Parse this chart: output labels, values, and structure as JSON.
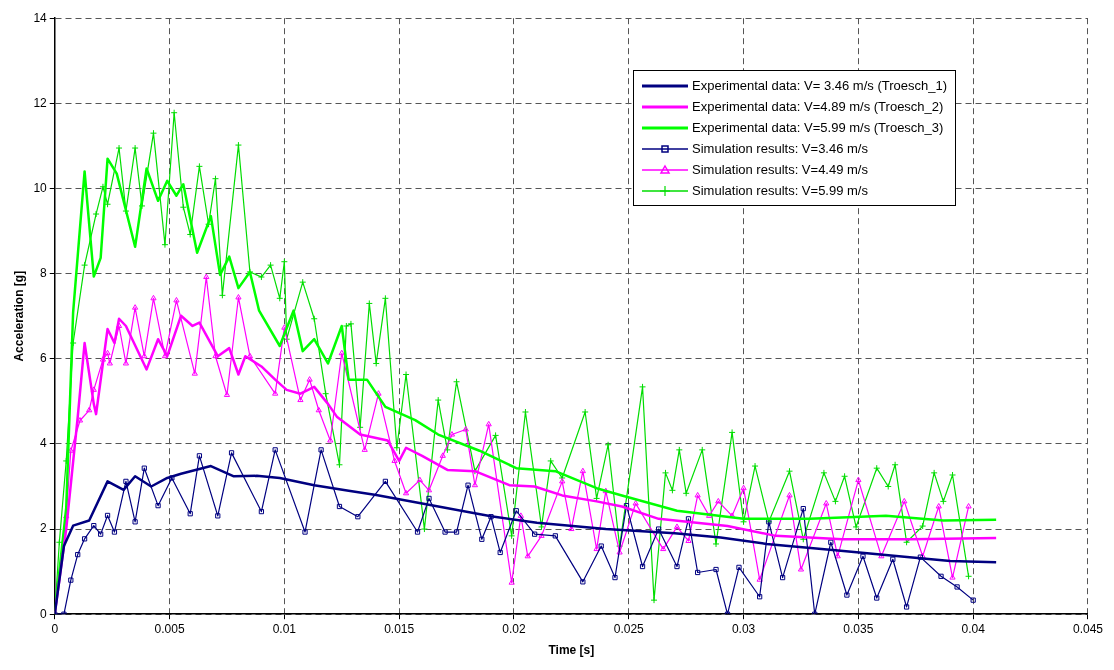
{
  "chart_data": {
    "type": "line",
    "xlabel": "Time [s]",
    "ylabel": "Acceleration [g]",
    "xlim": [
      0,
      0.045
    ],
    "ylim": [
      0,
      14
    ],
    "xticks": [
      0,
      0.005,
      0.01,
      0.015,
      0.02,
      0.025,
      0.03,
      0.035,
      0.04,
      0.045
    ],
    "yticks": [
      0,
      2,
      4,
      6,
      8,
      10,
      12,
      14
    ],
    "grid": true,
    "legend": "top right",
    "series": [
      {
        "name": "Experimental data: V= 3.46 m/s (Troesch_1)",
        "color": "#000080",
        "marker": "none",
        "x": [
          0,
          0.0004,
          0.0008,
          0.0015,
          0.0023,
          0.003,
          0.0035,
          0.0042,
          0.0049,
          0.0055,
          0.0068,
          0.0078,
          0.0088,
          0.0098,
          0.0113,
          0.0128,
          0.014,
          0.015,
          0.017,
          0.019,
          0.021,
          0.024,
          0.027,
          0.029,
          0.031,
          0.034,
          0.037,
          0.039,
          0.041
        ],
        "values": [
          0,
          1.6,
          2.08,
          2.2,
          3.12,
          2.92,
          3.24,
          3.0,
          3.2,
          3.3,
          3.48,
          3.24,
          3.25,
          3.2,
          3.03,
          2.9,
          2.8,
          2.7,
          2.5,
          2.3,
          2.15,
          2.0,
          1.9,
          1.8,
          1.65,
          1.5,
          1.35,
          1.25,
          1.22
        ]
      },
      {
        "name": "Experimental data: V=4.89 m/s (Troesch_2)",
        "color": "#ff00ff",
        "marker": "none",
        "x": [
          0,
          0.0005,
          0.001,
          0.0013,
          0.0017,
          0.0018,
          0.0023,
          0.0026,
          0.0028,
          0.0031,
          0.004,
          0.0045,
          0.0049,
          0.0055,
          0.006,
          0.0063,
          0.0071,
          0.0076,
          0.008,
          0.0083,
          0.009,
          0.0096,
          0.0101,
          0.0107,
          0.0113,
          0.0119,
          0.0123,
          0.0133,
          0.0145,
          0.015,
          0.0153,
          0.016,
          0.0171,
          0.0183,
          0.0198,
          0.0209,
          0.0221,
          0.0236,
          0.0247,
          0.0263,
          0.0293,
          0.0314,
          0.0343,
          0.0373,
          0.041
        ],
        "values": [
          0,
          2.0,
          4.63,
          6.37,
          4.94,
          4.7,
          6.7,
          6.37,
          6.94,
          6.77,
          5.75,
          6.46,
          6.06,
          7.01,
          6.77,
          6.85,
          6.06,
          6.25,
          5.63,
          6.06,
          5.82,
          5.51,
          5.27,
          5.18,
          5.34,
          4.94,
          4.63,
          4.22,
          4.08,
          3.6,
          3.91,
          3.72,
          3.39,
          3.36,
          3.03,
          3.0,
          2.79,
          2.65,
          2.53,
          2.24,
          2.07,
          1.84,
          1.76,
          1.76,
          1.79
        ]
      },
      {
        "name": "Experimental data: V=5.99 m/s (Troesch_3)",
        "color": "#00ff00",
        "marker": "none",
        "x": [
          0,
          0.0005,
          0.0008,
          0.0013,
          0.0017,
          0.002,
          0.0023,
          0.0027,
          0.0035,
          0.004,
          0.0045,
          0.0049,
          0.0053,
          0.0056,
          0.0062,
          0.0068,
          0.0072,
          0.0076,
          0.008,
          0.0085,
          0.0089,
          0.0098,
          0.0104,
          0.0108,
          0.0113,
          0.0119,
          0.0125,
          0.0128,
          0.0136,
          0.0144,
          0.0157,
          0.0167,
          0.0185,
          0.0201,
          0.0218,
          0.0236,
          0.0247,
          0.0271,
          0.03,
          0.0329,
          0.0362,
          0.0387,
          0.041
        ],
        "values": [
          0,
          2.5,
          7.09,
          10.4,
          7.93,
          8.37,
          10.7,
          10.35,
          8.63,
          10.47,
          9.71,
          10.18,
          9.83,
          10.1,
          8.49,
          9.35,
          7.97,
          8.4,
          7.66,
          8.04,
          7.13,
          6.3,
          7.13,
          6.18,
          6.46,
          5.89,
          6.77,
          5.51,
          5.51,
          4.87,
          4.56,
          4.22,
          3.84,
          3.43,
          3.36,
          2.96,
          2.79,
          2.43,
          2.24,
          2.24,
          2.31,
          2.2,
          2.22
        ]
      },
      {
        "name": "Simulation results: V=3.46 m/s",
        "color": "#000080",
        "marker": "square",
        "x": [
          0,
          0.0004,
          0.0007,
          0.001,
          0.0013,
          0.0017,
          0.002,
          0.0023,
          0.0026,
          0.0031,
          0.0035,
          0.0039,
          0.0045,
          0.0051,
          0.0059,
          0.0063,
          0.0071,
          0.0077,
          0.009,
          0.0096,
          0.0109,
          0.0116,
          0.0124,
          0.0132,
          0.0144,
          0.0158,
          0.0163,
          0.017,
          0.0175,
          0.018,
          0.0186,
          0.019,
          0.0194,
          0.0201,
          0.0209,
          0.0218,
          0.023,
          0.0238,
          0.0244,
          0.0249,
          0.0256,
          0.0263,
          0.0271,
          0.0276,
          0.028,
          0.0288,
          0.0293,
          0.0298,
          0.0307,
          0.0311,
          0.0317,
          0.0326,
          0.0331,
          0.0338,
          0.0345,
          0.0352,
          0.0358,
          0.0365,
          0.0371,
          0.0377,
          0.0386,
          0.0393,
          0.04
        ],
        "values": [
          0,
          0,
          0.8,
          1.4,
          1.77,
          2.08,
          1.88,
          2.32,
          1.93,
          3.12,
          2.17,
          3.43,
          2.55,
          3.2,
          2.36,
          3.72,
          2.31,
          3.79,
          2.41,
          3.86,
          1.93,
          3.86,
          2.53,
          2.29,
          3.12,
          1.93,
          2.72,
          1.93,
          1.93,
          3.03,
          1.76,
          2.29,
          1.45,
          2.43,
          1.88,
          1.84,
          0.76,
          1.6,
          0.86,
          2.55,
          1.12,
          2.0,
          1.12,
          2.24,
          0.98,
          1.05,
          0,
          1.1,
          0.41,
          2.17,
          0.86,
          2.48,
          0,
          1.69,
          0.45,
          1.36,
          0.38,
          1.29,
          0.17,
          1.34,
          0.89,
          0.64,
          0.33
        ]
      },
      {
        "name": "Simulation results: V=4.49 m/s",
        "color": "#ff00ff",
        "marker": "triangle",
        "x": [
          0,
          0.0005,
          0.0007,
          0.0011,
          0.0015,
          0.0017,
          0.0021,
          0.0023,
          0.0024,
          0.0028,
          0.0031,
          0.0035,
          0.0039,
          0.0043,
          0.0048,
          0.0053,
          0.0061,
          0.0066,
          0.007,
          0.0075,
          0.008,
          0.0085,
          0.0096,
          0.01,
          0.0107,
          0.0111,
          0.0115,
          0.012,
          0.0125,
          0.0135,
          0.0141,
          0.0148,
          0.0153,
          0.0159,
          0.0163,
          0.0169,
          0.0173,
          0.0179,
          0.0183,
          0.0189,
          0.0199,
          0.0203,
          0.0206,
          0.0212,
          0.0221,
          0.0225,
          0.023,
          0.0236,
          0.024,
          0.0246,
          0.0253,
          0.0265,
          0.0271,
          0.0276,
          0.028,
          0.0285,
          0.0289,
          0.0295,
          0.03,
          0.0307,
          0.032,
          0.0325,
          0.0336,
          0.0341,
          0.035,
          0.036,
          0.037,
          0.0378,
          0.0385,
          0.0391,
          0.0398
        ],
        "values": [
          0,
          2.3,
          3.84,
          4.55,
          4.79,
          5.27,
          5.98,
          6.13,
          5.89,
          6.77,
          5.89,
          7.2,
          6.06,
          7.42,
          6.06,
          7.37,
          5.65,
          7.92,
          6.06,
          5.15,
          7.44,
          6.06,
          5.18,
          6.73,
          5.03,
          5.51,
          4.79,
          4.08,
          6.13,
          3.86,
          5.18,
          3.6,
          2.84,
          3.15,
          2.91,
          3.72,
          4.22,
          4.34,
          3.03,
          4.46,
          0.74,
          2.31,
          1.36,
          1.84,
          3.12,
          2.0,
          3.36,
          1.53,
          2.89,
          1.45,
          2.6,
          1.53,
          2.05,
          1.72,
          2.79,
          2.31,
          2.65,
          2.31,
          2.96,
          0.81,
          2.79,
          1.05,
          2.6,
          1.36,
          3.15,
          1.36,
          2.65,
          1.36,
          2.53,
          0.86,
          2.53
        ]
      },
      {
        "name": "Simulation results: V=5.99 m/s",
        "color": "#00dd00",
        "marker": "cross",
        "x": [
          0,
          0.0002,
          0.0005,
          0.0008,
          0.0013,
          0.0018,
          0.0021,
          0.0023,
          0.0028,
          0.0031,
          0.0035,
          0.0038,
          0.0043,
          0.0048,
          0.0052,
          0.0056,
          0.0059,
          0.0063,
          0.0067,
          0.007,
          0.0073,
          0.008,
          0.0085,
          0.009,
          0.0094,
          0.0098,
          0.01,
          0.0101,
          0.0108,
          0.0113,
          0.0118,
          0.0124,
          0.0127,
          0.0129,
          0.0133,
          0.0137,
          0.014,
          0.0144,
          0.0149,
          0.0153,
          0.0161,
          0.0167,
          0.0171,
          0.0175,
          0.0183,
          0.0192,
          0.0199,
          0.0205,
          0.0212,
          0.0216,
          0.0221,
          0.0231,
          0.0236,
          0.0241,
          0.0246,
          0.0256,
          0.0261,
          0.0266,
          0.0269,
          0.0272,
          0.0275,
          0.0282,
          0.0288,
          0.0295,
          0.03,
          0.0305,
          0.0311,
          0.032,
          0.0326,
          0.0335,
          0.034,
          0.0344,
          0.0349,
          0.0358,
          0.0363,
          0.0366,
          0.0371,
          0.0378,
          0.0383,
          0.0387,
          0.0391,
          0.0398
        ],
        "values": [
          0,
          1.69,
          3.6,
          6.37,
          8.2,
          9.4,
          10.04,
          9.63,
          10.95,
          9.47,
          10.95,
          9.59,
          11.3,
          8.68,
          11.78,
          9.56,
          8.92,
          10.52,
          9.16,
          10.23,
          7.49,
          11.02,
          8.04,
          7.92,
          8.2,
          7.42,
          8.28,
          6.46,
          7.8,
          6.94,
          5.18,
          3.51,
          6.77,
          6.82,
          4.39,
          7.3,
          5.89,
          7.42,
          3.91,
          5.63,
          2.0,
          5.03,
          3.86,
          5.46,
          3.36,
          4.2,
          1.84,
          4.75,
          2.05,
          3.6,
          3.2,
          4.75,
          2.72,
          3.98,
          1.6,
          5.34,
          0.33,
          3.32,
          2.91,
          3.86,
          2.84,
          3.86,
          1.65,
          4.27,
          2.17,
          3.48,
          2.17,
          3.36,
          1.76,
          3.32,
          2.65,
          3.24,
          2.05,
          3.43,
          3.0,
          3.51,
          1.69,
          2.07,
          3.32,
          2.65,
          3.27,
          0.89
        ]
      }
    ]
  }
}
